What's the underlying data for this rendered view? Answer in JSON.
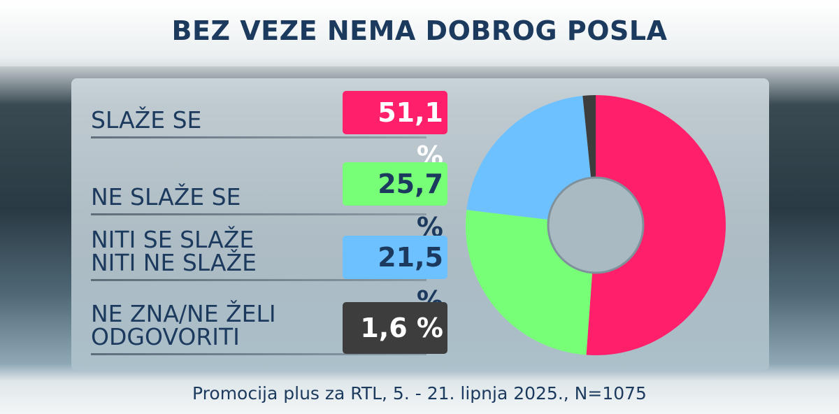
{
  "title": "BEZ VEZE NEMA DOBROG POSLA",
  "footer": "Promocija plus za RTL, 5. - 21. lipnja 2025., N=1075",
  "chart_data": {
    "type": "pie",
    "donut": true,
    "categories": [
      "SLAŽE SE",
      "NE SLAŽE SE",
      "NITI SE SLAŽE\nNITI NE SLAŽE",
      "NE ZNA/NE ŽELI\nODGOVORITI"
    ],
    "values": [
      51.1,
      25.7,
      21.5,
      1.6
    ],
    "value_labels": [
      "51,1 %",
      "25,7 %",
      "21,5 %",
      "1,6 %"
    ],
    "colors": [
      "#ff1f6b",
      "#77ff77",
      "#6ec1ff",
      "#3d3d3d"
    ],
    "label_text_colors": [
      "#ffffff",
      "#1c3a5e",
      "#1c3a5e",
      "#ffffff"
    ],
    "unit": "%"
  }
}
